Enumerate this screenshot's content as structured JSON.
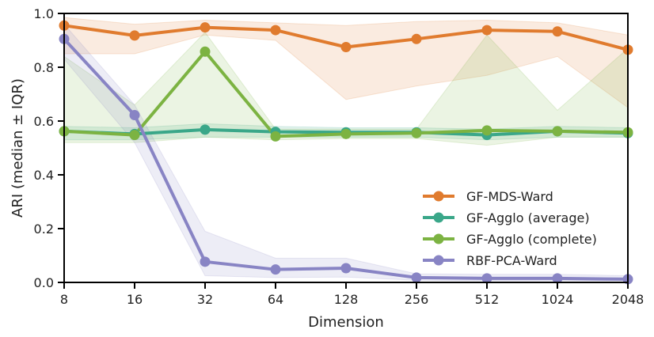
{
  "chart_data": {
    "type": "line",
    "title": "",
    "xlabel": "Dimension",
    "ylabel": "ARI (median ± IQR)",
    "x": [
      8,
      16,
      32,
      64,
      128,
      256,
      512,
      1024,
      2048
    ],
    "x_tick_labels": [
      "8",
      "16",
      "32",
      "64",
      "128",
      "256",
      "512",
      "1024",
      "2048"
    ],
    "x_scale": "log2",
    "ylim": [
      0.0,
      1.0
    ],
    "y_ticks": [
      0.0,
      0.2,
      0.4,
      0.6,
      0.8,
      1.0
    ],
    "y_tick_labels": [
      "0.0",
      "0.2",
      "0.4",
      "0.6",
      "0.8",
      "1.0"
    ],
    "grid": false,
    "legend_position": "lower-right",
    "series": [
      {
        "name": "GF-MDS-Ward",
        "color": "#e07b2e",
        "median": [
          0.955,
          0.918,
          0.948,
          0.938,
          0.875,
          0.905,
          0.938,
          0.933,
          0.865
        ],
        "q1": [
          0.85,
          0.85,
          0.92,
          0.9,
          0.68,
          0.73,
          0.77,
          0.84,
          0.65
        ],
        "q3": [
          0.985,
          0.96,
          0.975,
          0.965,
          0.955,
          0.97,
          0.975,
          0.965,
          0.92
        ]
      },
      {
        "name": "GF-Agglo (average)",
        "color": "#3aa789",
        "median": [
          0.562,
          0.552,
          0.568,
          0.56,
          0.558,
          0.558,
          0.548,
          0.562,
          0.555
        ],
        "q1": [
          0.53,
          0.53,
          0.54,
          0.54,
          0.54,
          0.54,
          0.53,
          0.54,
          0.54
        ],
        "q3": [
          0.58,
          0.575,
          0.59,
          0.58,
          0.575,
          0.575,
          0.57,
          0.58,
          0.575
        ]
      },
      {
        "name": "GF-Agglo (complete)",
        "color": "#7cb342",
        "median": [
          0.562,
          0.548,
          0.858,
          0.543,
          0.552,
          0.555,
          0.565,
          0.562,
          0.558
        ],
        "q1": [
          0.52,
          0.52,
          0.54,
          0.53,
          0.535,
          0.535,
          0.51,
          0.54,
          0.54
        ],
        "q3": [
          0.84,
          0.66,
          0.93,
          0.57,
          0.57,
          0.57,
          0.92,
          0.64,
          0.87
        ]
      },
      {
        "name": "RBF-PCA-Ward",
        "color": "#8884c4",
        "median": [
          0.905,
          0.622,
          0.077,
          0.048,
          0.053,
          0.018,
          0.015,
          0.015,
          0.012
        ],
        "q1": [
          0.83,
          0.52,
          0.025,
          0.018,
          0.02,
          0.008,
          0.006,
          0.006,
          0.005
        ],
        "q3": [
          0.96,
          0.66,
          0.19,
          0.09,
          0.09,
          0.032,
          0.03,
          0.03,
          0.025
        ]
      }
    ]
  }
}
